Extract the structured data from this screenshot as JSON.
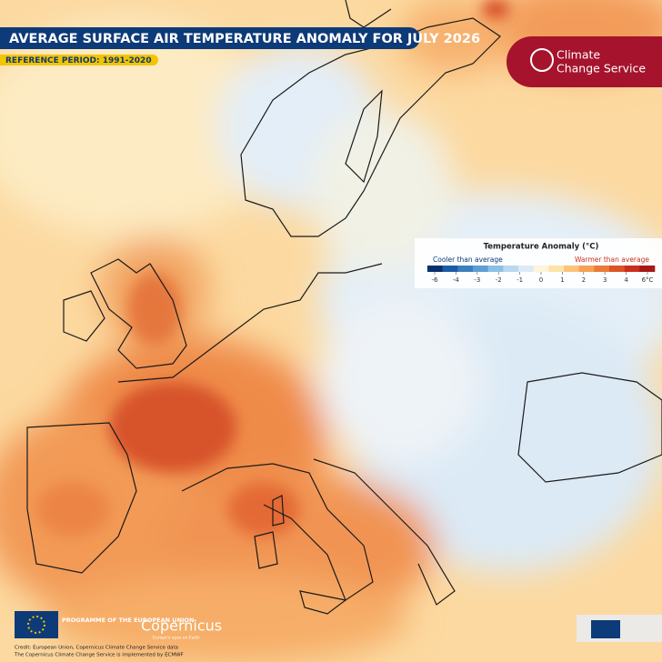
{
  "header": {
    "title": "AVERAGE SURFACE AIR TEMPERATURE ANOMALY FOR JULY 2026",
    "reference_period": "REFERENCE PERIOD: 1991-2020"
  },
  "logo": {
    "line1": "Climate",
    "line2": "Change Service"
  },
  "legend": {
    "title": "Temperature Anomaly (°C)",
    "cooler": "Cooler than average",
    "warmer": "Warmer than average",
    "ticks": [
      -6,
      -4,
      -3,
      -2,
      -1,
      0,
      1,
      2,
      3,
      4,
      {
        "value": 6,
        "label": "6°C"
      }
    ],
    "colors": [
      "#08306b",
      "#1c5ba6",
      "#3a7fc0",
      "#5d9fd3",
      "#8cbfe4",
      "#b8d8ef",
      "#ddebf6",
      "#fdf4dc",
      "#fde3a8",
      "#fbc479",
      "#f6a054",
      "#ec7a3a",
      "#dc5328",
      "#c8301c",
      "#a81818"
    ]
  },
  "footer": {
    "programme": "PROGRAMME OF THE EUROPEAN UNION",
    "copernicus": "Copernicus",
    "tagline": "Europe's eyes on Earth",
    "credit1": "Credit: European Union, Copernicus Climate Change Service data",
    "credit2": "The Copernicus Climate Change Service is implemented by ECMWF"
  }
}
